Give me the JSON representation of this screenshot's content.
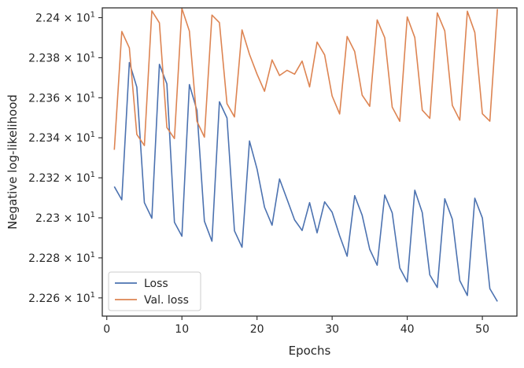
{
  "chart_data": {
    "type": "line",
    "title": "",
    "xlabel": "Epochs",
    "ylabel": "Negative log-likelihood",
    "xlim": [
      -0.6,
      54.6
    ],
    "ylim": [
      22.2509,
      22.4049
    ],
    "x_ticks": [
      0,
      10,
      20,
      30,
      40,
      50
    ],
    "x_tick_labels": [
      "0",
      "10",
      "20",
      "30",
      "40",
      "50"
    ],
    "y_ticks": [
      22.26,
      22.28,
      22.3,
      22.32,
      22.34,
      22.36,
      22.38,
      22.4
    ],
    "y_tick_labels": [
      {
        "mantissa": "2.226",
        "base": "10",
        "exp": "1"
      },
      {
        "mantissa": "2.228",
        "base": "10",
        "exp": "1"
      },
      {
        "mantissa": "2.23",
        "base": "10",
        "exp": "1"
      },
      {
        "mantissa": "2.232",
        "base": "10",
        "exp": "1"
      },
      {
        "mantissa": "2.234",
        "base": "10",
        "exp": "1"
      },
      {
        "mantissa": "2.236",
        "base": "10",
        "exp": "1"
      },
      {
        "mantissa": "2.238",
        "base": "10",
        "exp": "1"
      },
      {
        "mantissa": "2.24",
        "base": "10",
        "exp": "1"
      }
    ],
    "grid": false,
    "legend_position": "lower-left",
    "x": [
      1,
      2,
      3,
      4,
      5,
      6,
      7,
      8,
      9,
      10,
      11,
      12,
      13,
      14,
      15,
      16,
      17,
      18,
      19,
      20,
      21,
      22,
      23,
      24,
      25,
      26,
      27,
      28,
      29,
      30,
      31,
      32,
      33,
      34,
      35,
      36,
      37,
      38,
      39,
      40,
      41,
      42,
      43,
      44,
      45,
      46,
      47,
      48,
      49,
      50,
      51,
      52
    ],
    "series": [
      {
        "name": "Loss",
        "color": "#4c72b0",
        "values": [
          22.3156,
          22.309,
          22.3776,
          22.3653,
          22.3076,
          22.2998,
          22.3767,
          22.3669,
          22.2978,
          22.2908,
          22.3666,
          22.3537,
          22.2983,
          22.2883,
          22.358,
          22.3499,
          22.2935,
          22.2853,
          22.3384,
          22.3244,
          22.3053,
          22.2963,
          22.3194,
          22.3092,
          22.299,
          22.2937,
          22.3076,
          22.2925,
          22.308,
          22.3028,
          22.291,
          22.2808,
          22.3111,
          22.3013,
          22.2843,
          22.2763,
          22.3114,
          22.3025,
          22.275,
          22.268,
          22.3138,
          22.3026,
          22.2715,
          22.2652,
          22.3095,
          22.2993,
          22.2686,
          22.2612,
          22.3098,
          22.2999,
          22.2646,
          22.2582
        ]
      },
      {
        "name": "Val. loss",
        "color": "#dd8452",
        "values": [
          22.334,
          22.3931,
          22.3849,
          22.3417,
          22.3361,
          22.4034,
          22.3974,
          22.3451,
          22.3396,
          22.4046,
          22.3933,
          22.3482,
          22.3403,
          22.4013,
          22.3975,
          22.357,
          22.3504,
          22.3939,
          22.3817,
          22.3718,
          22.3632,
          22.3789,
          22.3711,
          22.3737,
          22.3718,
          22.3783,
          22.3654,
          22.3878,
          22.3814,
          22.3609,
          22.3519,
          22.3906,
          22.3831,
          22.3613,
          22.3557,
          22.3989,
          22.39,
          22.3553,
          22.3482,
          22.4004,
          22.3901,
          22.3538,
          22.3497,
          22.4024,
          22.3934,
          22.3562,
          22.3488,
          22.4032,
          22.3926,
          22.352,
          22.3483,
          22.4043
        ]
      }
    ]
  }
}
